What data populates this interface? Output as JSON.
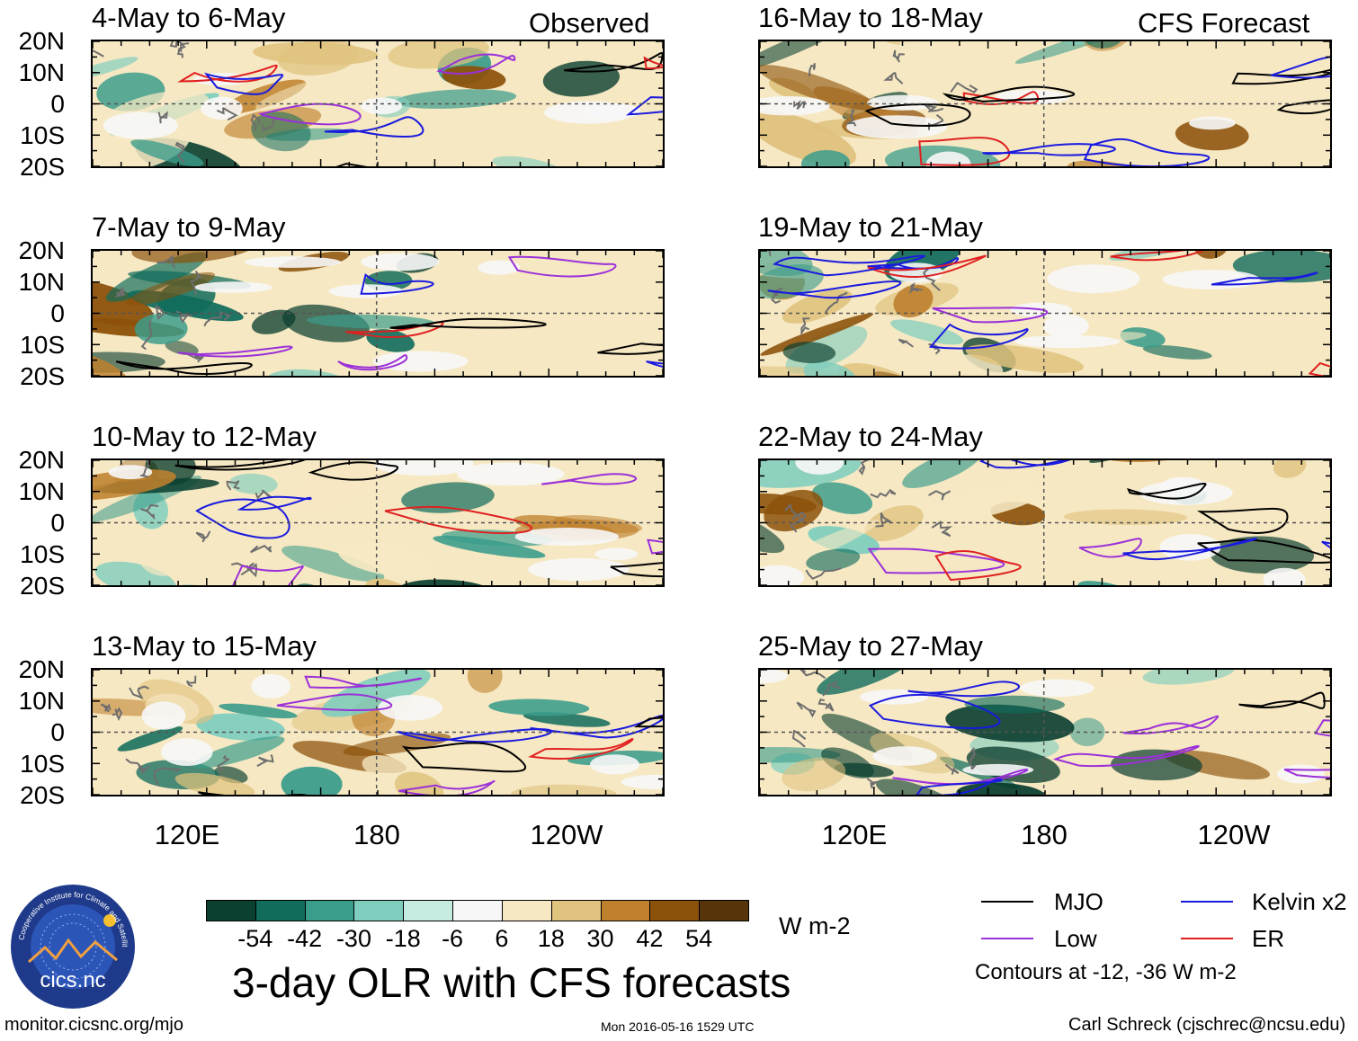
{
  "sections": {
    "observed": "Observed",
    "forecast": "CFS Forecast"
  },
  "panels": [
    {
      "title": "4-May to 6-May",
      "group": "observed"
    },
    {
      "title": "7-May to 9-May",
      "group": "observed"
    },
    {
      "title": "10-May to 12-May",
      "group": "observed"
    },
    {
      "title": "13-May to 15-May",
      "group": "observed"
    },
    {
      "title": "16-May to 18-May",
      "group": "forecast"
    },
    {
      "title": "19-May to 21-May",
      "group": "forecast"
    },
    {
      "title": "22-May to 24-May",
      "group": "forecast"
    },
    {
      "title": "25-May to 27-May",
      "group": "forecast"
    }
  ],
  "lat_labels": [
    "20N",
    "10N",
    "0",
    "10S",
    "20S"
  ],
  "lon_labels": [
    "120E",
    "180",
    "120W"
  ],
  "colorbar": {
    "colors": [
      "#0b3f30",
      "#116c5c",
      "#3a9c8b",
      "#7fcdbd",
      "#c6ebe0",
      "#f7f7f7",
      "#f6e8c3",
      "#dfc27d",
      "#bf812d",
      "#8c510a",
      "#553509"
    ],
    "ticks": [
      "-54",
      "-42",
      "-30",
      "-18",
      "-6",
      "6",
      "18",
      "30",
      "42",
      "54"
    ],
    "units": "W m-2"
  },
  "legend": {
    "items": [
      {
        "label": "MJO",
        "color": "#000000"
      },
      {
        "label": "Kelvin x2",
        "color": "#1a1adf"
      },
      {
        "label": "Low",
        "color": "#9b30d9"
      },
      {
        "label": "ER",
        "color": "#e02020"
      }
    ],
    "note": "Contours at -12, -36 W m-2"
  },
  "main_title": "3-day OLR with CFS forecasts",
  "logo": {
    "text": "cics.nc",
    "ring": "Cooperative Institute for Climate and Satellites"
  },
  "footer": {
    "url": "monitor.cicsnc.org/mjo",
    "timestamp": "Mon 2016-05-16 1529 UTC",
    "credit": "Carl Schreck (cjschrec@ncsu.edu)"
  }
}
